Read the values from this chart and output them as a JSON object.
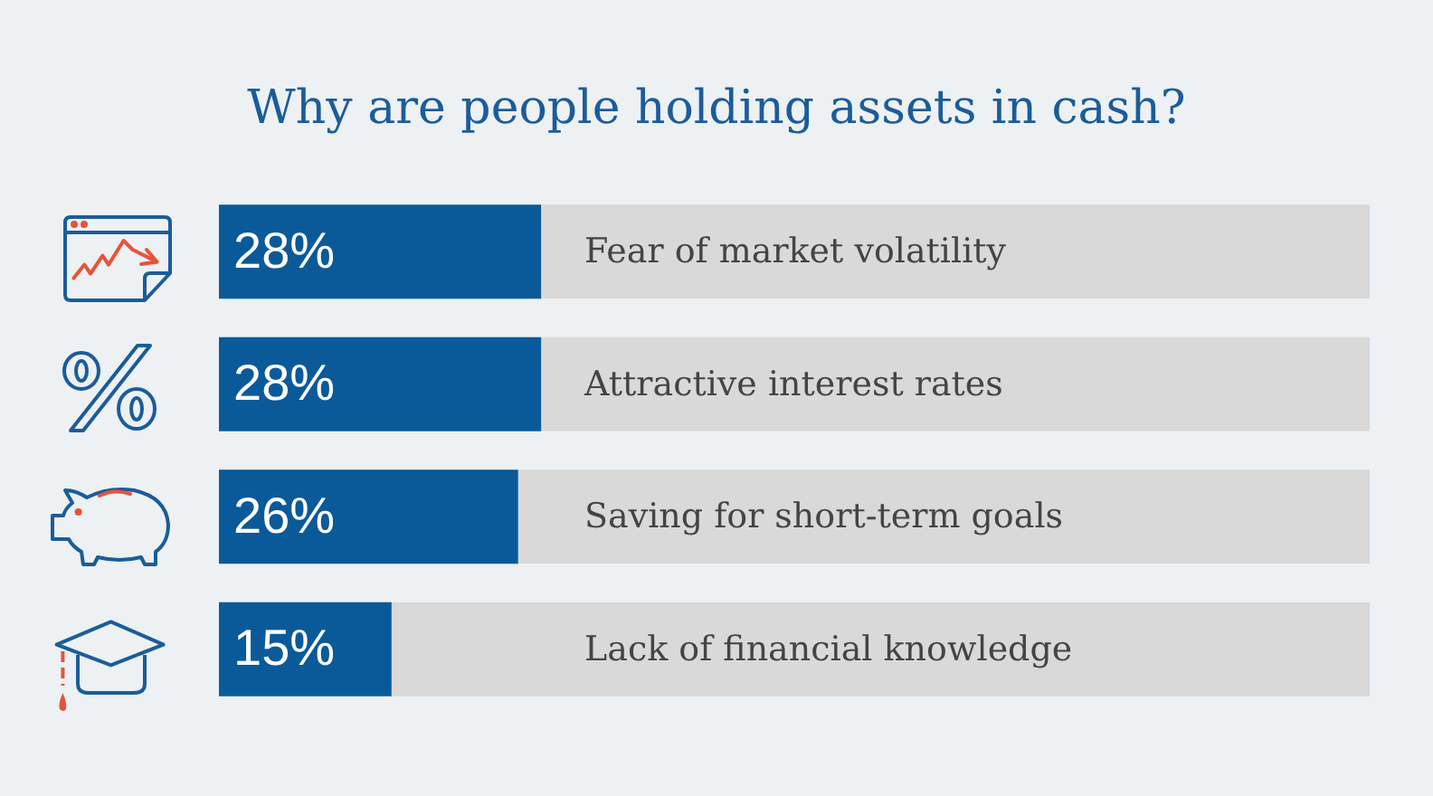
{
  "chart_data": {
    "type": "bar",
    "orientation": "horizontal",
    "stacked": true,
    "title": "Why are people holding assets in cash?",
    "categories": [
      "Fear of market volatility",
      "Attractive interest rates",
      "Saving for short-term goals",
      "Lack of financial knowledge"
    ],
    "series": [
      {
        "color": "#0a5a99",
        "values": [
          28,
          28,
          26,
          15
        ],
        "value_labels": [
          "28%",
          "28%",
          "26%",
          "15%"
        ]
      },
      {
        "color": "#d9d9d9",
        "values": [
          72,
          72,
          74,
          85
        ]
      }
    ],
    "xlim": [
      0,
      100
    ],
    "tick_labels": "y"
  }
}
